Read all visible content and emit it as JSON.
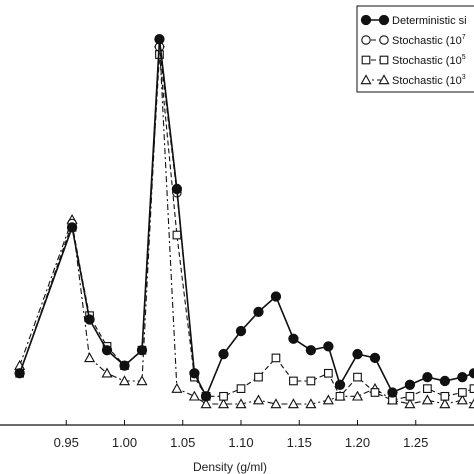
{
  "chart_data": {
    "type": "line",
    "xlabel": "Density (g/ml)",
    "ylabel": "",
    "xlim": [
      0.9,
      1.3
    ],
    "ylim": [
      0,
      1.0
    ],
    "x_ticks": [
      "0.95",
      "1.00",
      "1.05",
      "1.10",
      "1.15",
      "1.20",
      "1.25"
    ],
    "legend_position": "top-right",
    "series": [
      {
        "name": "Deterministic si",
        "name_sup": "",
        "marker": "filled-circle",
        "dash": "solid",
        "x": [
          0.91,
          0.955,
          0.97,
          0.985,
          1.0,
          1.015,
          1.03,
          1.045,
          1.06,
          1.07,
          1.085,
          1.1,
          1.115,
          1.13,
          1.145,
          1.16,
          1.175,
          1.185,
          1.2,
          1.215,
          1.23,
          1.245,
          1.26,
          1.275,
          1.29,
          1.3
        ],
        "y": [
          0.08,
          0.46,
          0.22,
          0.14,
          0.1,
          0.14,
          0.95,
          0.56,
          0.08,
          0.02,
          0.13,
          0.19,
          0.24,
          0.28,
          0.17,
          0.14,
          0.15,
          0.05,
          0.13,
          0.12,
          0.03,
          0.05,
          0.07,
          0.06,
          0.07,
          0.08
        ]
      },
      {
        "name": "Stochastic (10",
        "name_sup": "7",
        "marker": "open-circle",
        "dash": "dashed",
        "x": [
          0.91,
          0.955,
          0.97,
          0.985,
          1.0,
          1.015,
          1.03,
          1.045,
          1.06,
          1.07,
          1.085,
          1.1,
          1.115,
          1.13,
          1.145,
          1.16,
          1.175,
          1.185,
          1.2,
          1.215,
          1.23,
          1.245,
          1.26,
          1.275,
          1.29,
          1.3
        ],
        "y": [
          0.08,
          0.47,
          0.22,
          0.14,
          0.1,
          0.14,
          0.93,
          0.55,
          0.08,
          0.02,
          0.13,
          0.19,
          0.24,
          0.28,
          0.17,
          0.14,
          0.15,
          0.05,
          0.13,
          0.12,
          0.03,
          0.05,
          0.07,
          0.06,
          0.07,
          0.08
        ]
      },
      {
        "name": "Stochastic (10",
        "name_sup": "5",
        "marker": "open-square",
        "dash": "dashed",
        "x": [
          0.91,
          0.955,
          0.97,
          0.985,
          1.0,
          1.015,
          1.03,
          1.045,
          1.06,
          1.07,
          1.085,
          1.1,
          1.115,
          1.13,
          1.145,
          1.16,
          1.175,
          1.185,
          1.2,
          1.215,
          1.23,
          1.245,
          1.26,
          1.275,
          1.29,
          1.3
        ],
        "y": [
          0.08,
          0.46,
          0.23,
          0.15,
          0.1,
          0.14,
          0.91,
          0.44,
          0.07,
          0.02,
          0.02,
          0.04,
          0.07,
          0.12,
          0.06,
          0.06,
          0.08,
          0.02,
          0.07,
          0.03,
          0.01,
          0.02,
          0.04,
          0.02,
          0.03,
          0.04
        ]
      },
      {
        "name": "Stochastic (10",
        "name_sup": "3",
        "marker": "open-triangle",
        "dash": "dashdot",
        "x": [
          0.91,
          0.955,
          0.97,
          0.985,
          1.0,
          1.015,
          1.03,
          1.045,
          1.06,
          1.07,
          1.085,
          1.1,
          1.115,
          1.13,
          1.145,
          1.16,
          1.175,
          1.185,
          1.2,
          1.215,
          1.23,
          1.245,
          1.26,
          1.275,
          1.29,
          1.3
        ],
        "y": [
          0.1,
          0.48,
          0.12,
          0.08,
          0.06,
          0.06,
          0.94,
          0.04,
          0.02,
          0.0,
          0.0,
          0.0,
          0.01,
          0.0,
          0.0,
          0.0,
          0.01,
          0.02,
          0.02,
          0.04,
          0.01,
          0.0,
          0.01,
          0.0,
          0.01,
          0.0
        ]
      }
    ]
  }
}
